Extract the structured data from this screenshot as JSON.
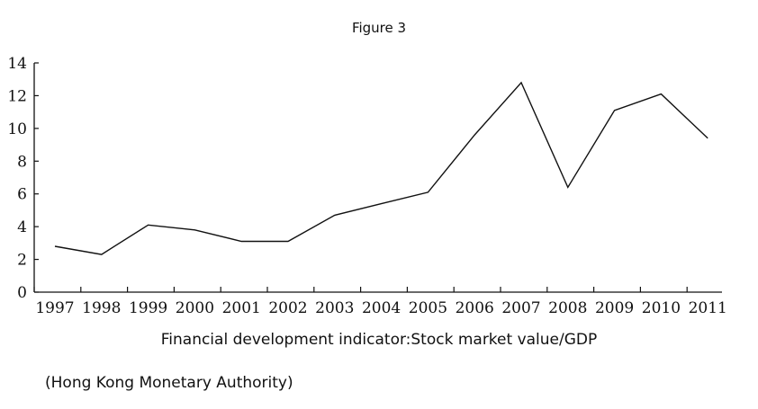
{
  "figure_title": "Figure 3",
  "caption": "Financial development indicator:Stock market value/GDP",
  "source_note": "(Hong Kong Monetary Authority)",
  "chart_data": {
    "type": "line",
    "title": "",
    "xlabel": "",
    "ylabel": "",
    "x": [
      "1997",
      "1998",
      "1999",
      "2000",
      "2001",
      "2002",
      "2003",
      "2004",
      "2005",
      "2006",
      "2007",
      "2008",
      "2009",
      "2010",
      "2011"
    ],
    "series": [
      {
        "values": [
          2.8,
          2.3,
          4.1,
          3.8,
          3.1,
          3.1,
          4.7,
          5.4,
          6.1,
          9.6,
          12.8,
          6.4,
          11.1,
          12.1,
          9.4
        ]
      }
    ],
    "ylim": [
      0,
      14
    ],
    "yticks": [
      0,
      2,
      4,
      6,
      8,
      10,
      12,
      14
    ],
    "grid": false,
    "legend": "none",
    "line_color": "#111111"
  }
}
